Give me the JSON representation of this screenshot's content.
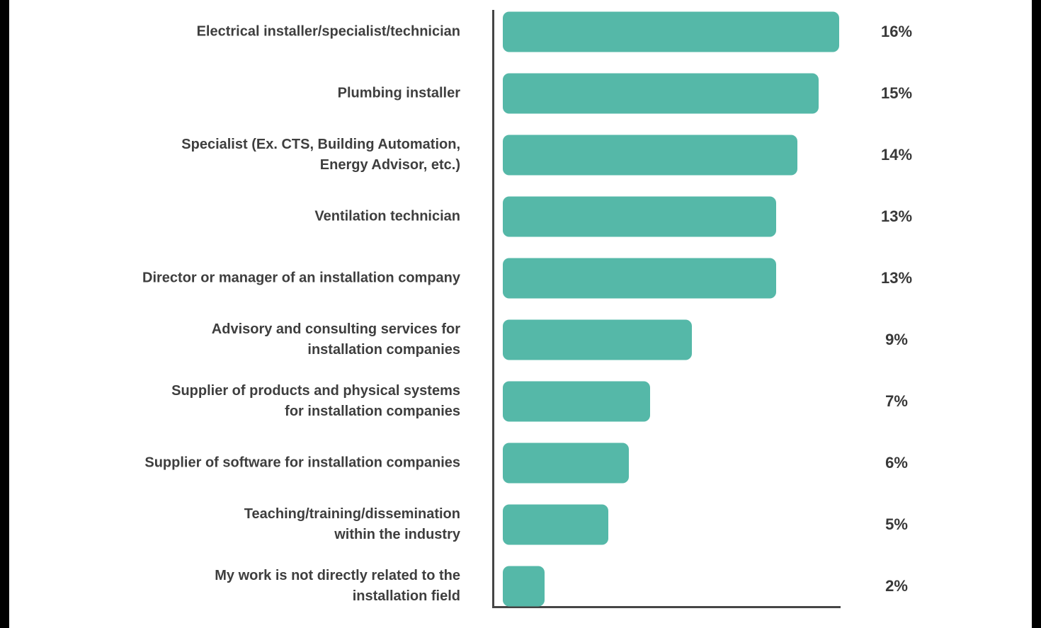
{
  "chart_data": {
    "type": "bar",
    "orientation": "horizontal",
    "title": "",
    "xlabel": "",
    "ylabel": "",
    "categories": [
      "Electrical installer/specialist/technician",
      "Plumbing installer",
      "Specialist (Ex. CTS, Building Automation,\nEnergy Advisor, etc.)",
      "Ventilation technician",
      "Director or manager of an installation company",
      "Advisory and consulting services for\ninstallation companies",
      "Supplier of products and physical systems\nfor installation companies",
      "Supplier of software for installation companies",
      "Teaching/training/dissemination\nwithin the industry",
      "My work is not directly related to the\ninstallation field"
    ],
    "values": [
      16,
      15,
      14,
      13,
      13,
      9,
      7,
      6,
      5,
      2
    ],
    "value_labels": [
      "16%",
      "15%",
      "14%",
      "13%",
      "13%",
      "9%",
      "7%",
      "6%",
      "5%",
      "2%"
    ],
    "xlim": [
      0,
      16.5
    ],
    "grid": false,
    "legend": "none",
    "bar_color": "#55B8A8",
    "axis_color": "#454545",
    "label_color": "#3E3E3E",
    "value_color": "#383838",
    "background_color": "#FFFFFF",
    "letterbox_color": "#000000"
  }
}
